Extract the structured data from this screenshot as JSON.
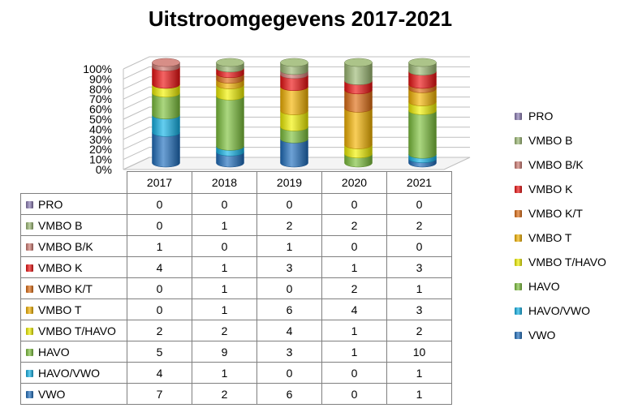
{
  "chart_data": {
    "type": "bar",
    "stacked": true,
    "normalized": true,
    "title": "Uitstroomgegevens 2017-2021",
    "categories": [
      "2017",
      "2018",
      "2019",
      "2020",
      "2021"
    ],
    "yticks": [
      "0%",
      "10%",
      "20%",
      "30%",
      "40%",
      "50%",
      "60%",
      "70%",
      "80%",
      "90%",
      "100%"
    ],
    "ylim": [
      0,
      100
    ],
    "legend_position": "right",
    "series": [
      {
        "name": "VWO",
        "color": "#1f6fbf",
        "values": [
          7,
          2,
          6,
          0,
          1
        ]
      },
      {
        "name": "HAVO/VWO",
        "color": "#12b3e8",
        "values": [
          4,
          1,
          0,
          0,
          1
        ]
      },
      {
        "name": "HAVO",
        "color": "#7dc23c",
        "values": [
          5,
          9,
          3,
          1,
          10
        ]
      },
      {
        "name": "VMBO T/HAVO",
        "color": "#f2f200",
        "values": [
          2,
          2,
          4,
          1,
          2
        ]
      },
      {
        "name": "VMBO T",
        "color": "#f5b400",
        "values": [
          0,
          1,
          6,
          4,
          3
        ]
      },
      {
        "name": "VMBO K/T",
        "color": "#e06d12",
        "values": [
          0,
          1,
          0,
          2,
          1
        ]
      },
      {
        "name": "VMBO K",
        "color": "#ee1111",
        "values": [
          4,
          1,
          3,
          1,
          3
        ]
      },
      {
        "name": "VMBO B/K",
        "color": "#d07a72",
        "values": [
          1,
          0,
          1,
          0,
          0
        ]
      },
      {
        "name": "VMBO B",
        "color": "#9dba74",
        "values": [
          0,
          1,
          2,
          2,
          2
        ]
      },
      {
        "name": "PRO",
        "color": "#8a7ab3",
        "values": [
          0,
          0,
          0,
          0,
          0
        ]
      }
    ]
  }
}
